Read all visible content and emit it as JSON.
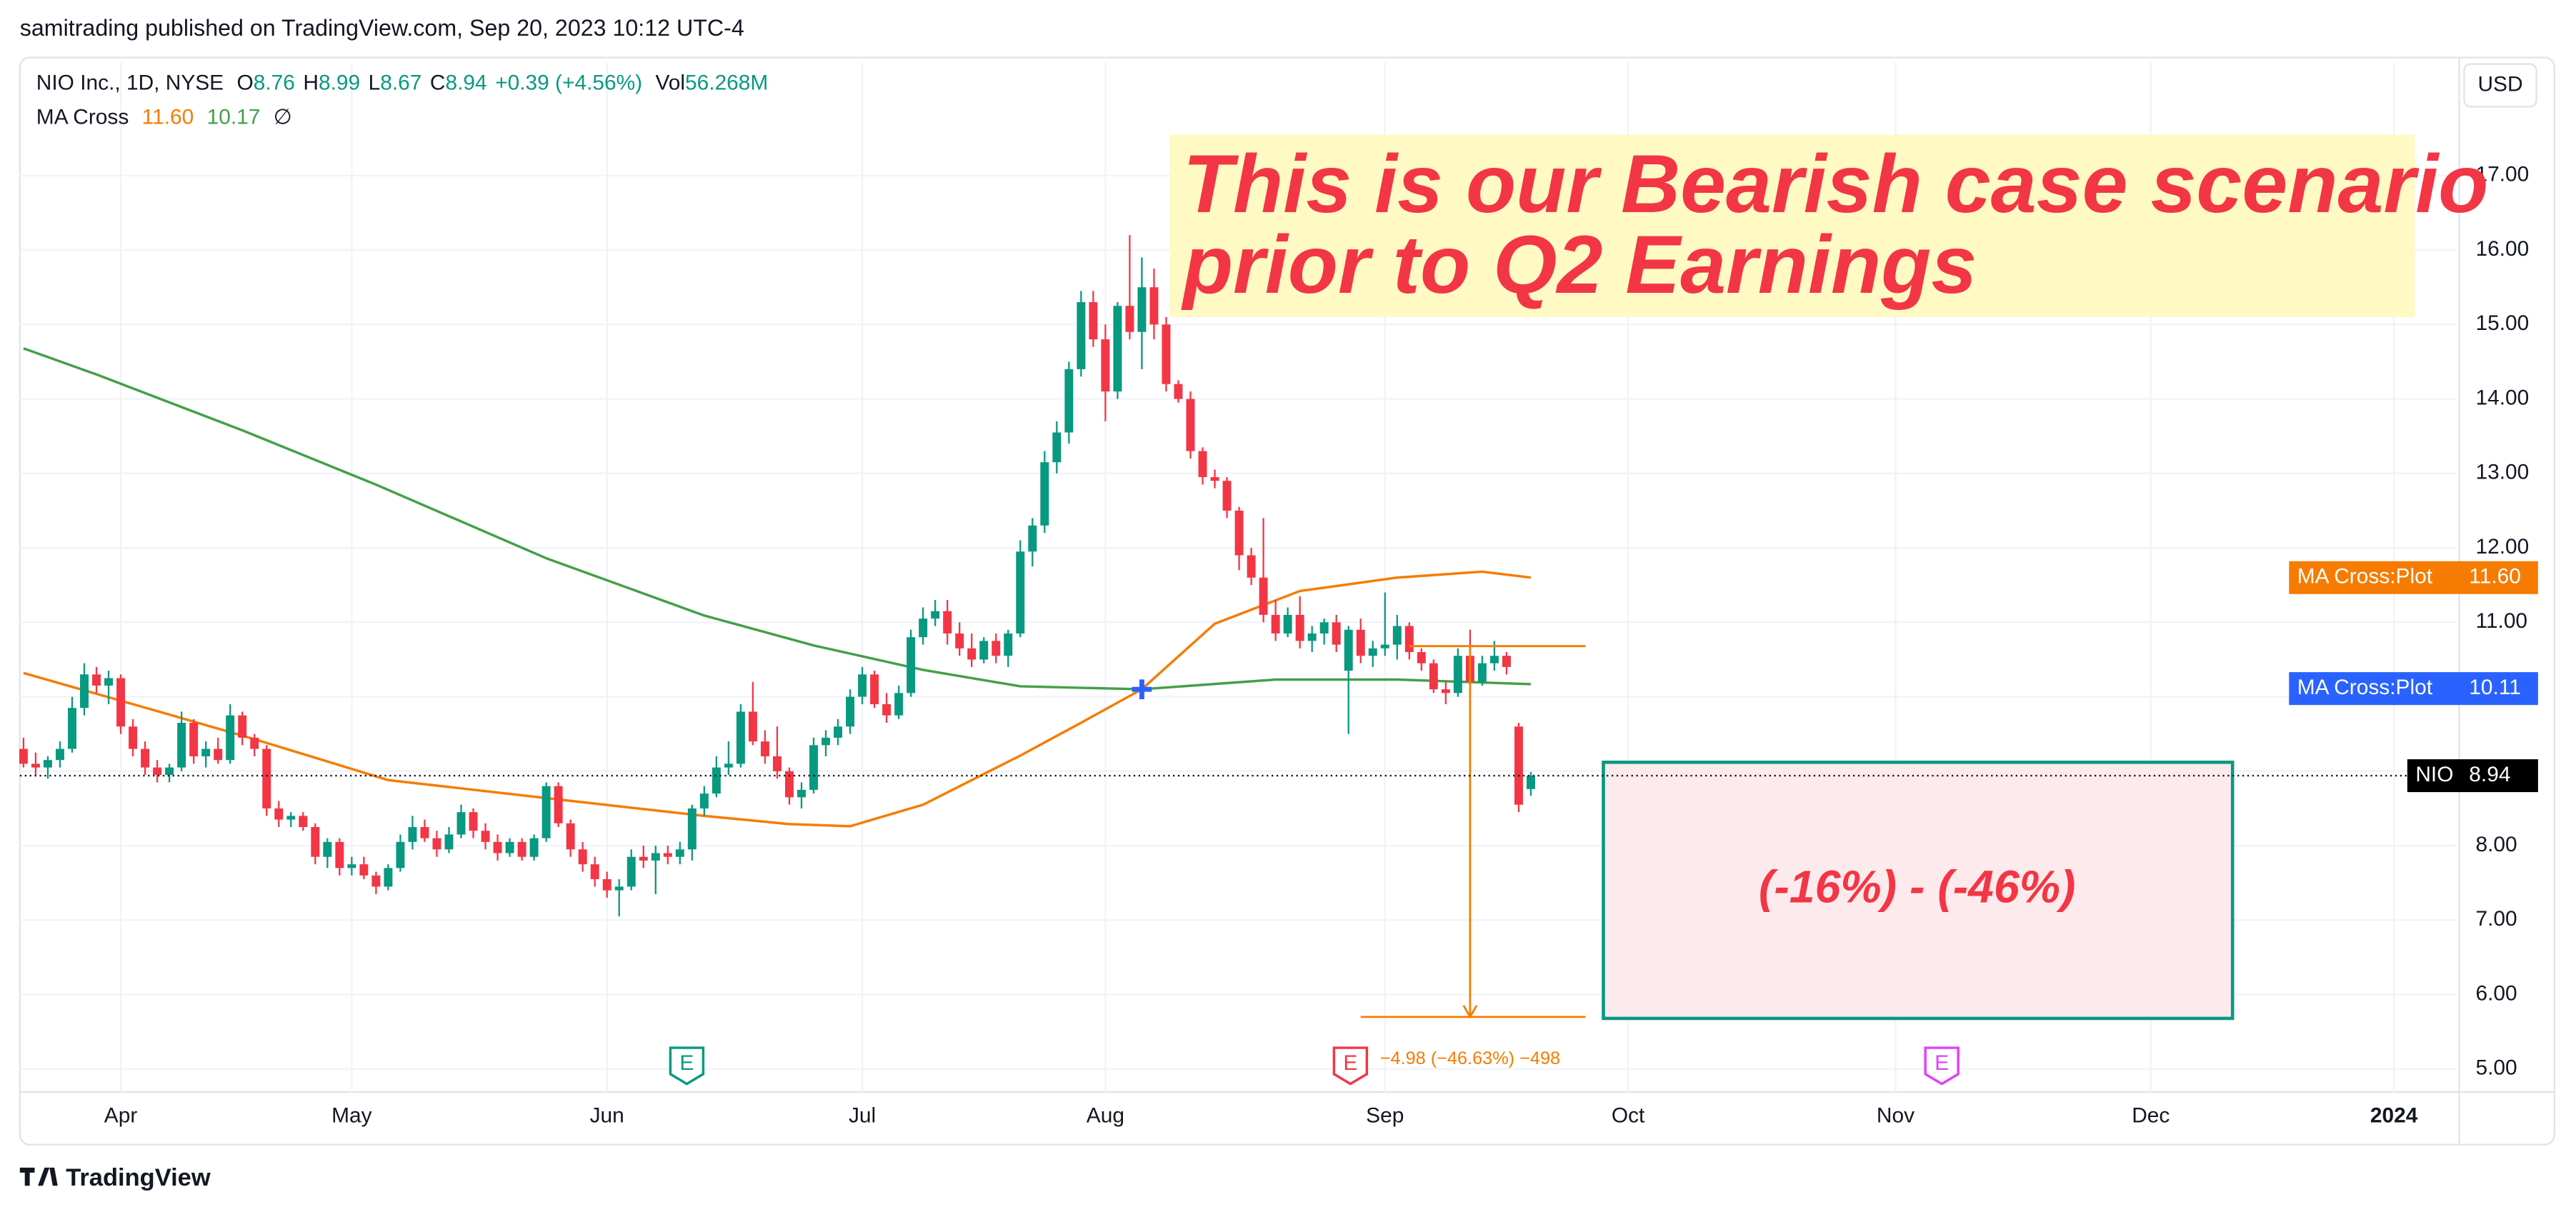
{
  "chart_data": {
    "type": "candlestick",
    "published": "samitrading published on TradingView.com, Sep 20, 2023 10:12 UTC-4",
    "symbol": "NIO Inc., 1D, NYSE",
    "legend_items": [
      {
        "label": "O",
        "value": "8.76"
      },
      {
        "label": "H",
        "value": "8.99"
      },
      {
        "label": "L",
        "value": "8.67"
      },
      {
        "label": "C",
        "value": "8.94"
      }
    ],
    "change": "+0.39 (+4.56%)",
    "volume": {
      "label": "Vol",
      "value": "56.268M"
    },
    "ma_legend": {
      "name": "MA Cross",
      "values": [
        "11.60",
        "10.17"
      ],
      "symbol": "∅"
    },
    "currency": "USD",
    "brand": "TradingView",
    "annotation": {
      "lines": [
        "This is our Bearish case scenario",
        "prior to Q2 Earnings"
      ],
      "color": "#f23645"
    },
    "zone": {
      "top": 9.12,
      "bottom": 5.68,
      "label": "(-16%) - (-46%)",
      "color": "#089981"
    },
    "measure": {
      "start": 10.68,
      "end": 5.7,
      "label": "−4.98 (−46.63%) −498",
      "color": "#f57c00"
    },
    "earnings": [
      {
        "label": "E",
        "color": "#089981"
      },
      {
        "label": "E",
        "color": "#f23645"
      },
      {
        "label": "E",
        "color": "#e040fb"
      }
    ],
    "up_color": "#089981",
    "down_color": "#f23645",
    "open": [
      9.3,
      9.1,
      9.05,
      9.15,
      9.3,
      9.85,
      10.3,
      10.15,
      10.25,
      9.6,
      9.3,
      9.05,
      8.95,
      9.05,
      9.65,
      9.2,
      9.3,
      9.15,
      9.75,
      9.45,
      9.3,
      8.5,
      8.35,
      8.4,
      8.25,
      7.85,
      8.05,
      7.7,
      7.75,
      7.6,
      7.45,
      7.7,
      8.05,
      8.25,
      8.1,
      7.95,
      8.15,
      8.45,
      8.2,
      8.05,
      7.9,
      8.05,
      7.85,
      8.1,
      8.8,
      8.3,
      7.95,
      7.75,
      7.55,
      7.4,
      7.45,
      7.85,
      7.8,
      7.9,
      7.85,
      7.95,
      8.5,
      8.7,
      9.05,
      9.1,
      9.8,
      9.4,
      9.2,
      9.0,
      8.65,
      8.75,
      9.35,
      9.45,
      9.6,
      10.0,
      10.3,
      9.9,
      9.75,
      10.05,
      10.8,
      11.05,
      11.15,
      10.85,
      10.65,
      10.5,
      10.75,
      10.55,
      10.85,
      11.95,
      12.3,
      13.15,
      13.55,
      14.4,
      15.3,
      14.8,
      14.1,
      15.25,
      14.9,
      15.5,
      15.0,
      14.2,
      14.0,
      13.3,
      12.95,
      12.9,
      12.5,
      11.9,
      11.6,
      11.1,
      10.85,
      11.1,
      10.75,
      10.85,
      11.0,
      10.35,
      10.9,
      10.55,
      10.65,
      10.7,
      10.95,
      10.6,
      10.45,
      10.1,
      10.05,
      10.55,
      10.2,
      10.45,
      10.55,
      9.6,
      8.76
    ],
    "high": [
      9.45,
      9.25,
      9.2,
      9.4,
      10.0,
      10.45,
      10.4,
      10.35,
      10.3,
      9.7,
      9.4,
      9.15,
      9.1,
      9.8,
      9.7,
      9.4,
      9.45,
      9.9,
      9.8,
      9.5,
      9.35,
      8.6,
      8.45,
      8.45,
      8.3,
      8.1,
      8.1,
      7.85,
      7.85,
      7.65,
      7.75,
      8.15,
      8.4,
      8.35,
      8.2,
      8.25,
      8.55,
      8.5,
      8.3,
      8.15,
      8.1,
      8.1,
      8.15,
      8.85,
      8.85,
      8.35,
      8.05,
      7.85,
      7.65,
      7.55,
      7.95,
      8.0,
      8.0,
      8.0,
      8.05,
      8.55,
      8.8,
      9.2,
      9.4,
      9.9,
      10.2,
      9.55,
      9.6,
      9.05,
      8.85,
      9.45,
      9.55,
      9.7,
      10.1,
      10.4,
      10.35,
      10.05,
      10.15,
      10.9,
      11.2,
      11.3,
      11.3,
      11.0,
      10.85,
      10.8,
      10.85,
      10.9,
      12.1,
      12.4,
      13.3,
      13.7,
      14.5,
      15.45,
      15.45,
      15.0,
      15.3,
      16.2,
      15.9,
      15.75,
      15.1,
      14.25,
      14.1,
      13.35,
      13.05,
      12.95,
      12.55,
      12.0,
      12.4,
      11.3,
      11.2,
      11.35,
      10.95,
      11.05,
      11.1,
      10.95,
      11.05,
      10.75,
      11.4,
      11.1,
      11.0,
      10.65,
      10.5,
      10.2,
      10.65,
      10.9,
      10.55,
      10.75,
      10.6,
      9.65,
      8.99
    ],
    "low": [
      9.05,
      8.95,
      8.9,
      9.05,
      9.25,
      9.75,
      10.05,
      9.9,
      9.5,
      9.2,
      8.95,
      8.85,
      8.85,
      9.0,
      9.1,
      9.05,
      9.1,
      9.1,
      9.35,
      9.2,
      8.4,
      8.25,
      8.25,
      8.2,
      7.75,
      7.7,
      7.6,
      7.6,
      7.55,
      7.35,
      7.4,
      7.65,
      7.95,
      8.05,
      7.85,
      7.9,
      8.1,
      8.1,
      7.95,
      7.8,
      7.85,
      7.8,
      7.8,
      8.05,
      8.25,
      7.85,
      7.65,
      7.45,
      7.3,
      7.05,
      7.4,
      7.7,
      7.35,
      7.75,
      7.75,
      7.8,
      8.4,
      8.65,
      8.95,
      9.05,
      9.35,
      9.1,
      8.9,
      8.55,
      8.5,
      8.7,
      9.2,
      9.35,
      9.5,
      9.9,
      9.85,
      9.65,
      9.7,
      10.0,
      10.7,
      10.95,
      10.7,
      10.55,
      10.4,
      10.45,
      10.45,
      10.4,
      10.8,
      11.75,
      12.2,
      13.0,
      13.4,
      14.3,
      14.7,
      13.7,
      14.0,
      14.8,
      14.4,
      14.8,
      14.1,
      13.95,
      13.2,
      12.85,
      12.8,
      12.4,
      11.7,
      11.5,
      11.0,
      10.75,
      10.8,
      10.65,
      10.6,
      10.7,
      10.6,
      9.5,
      10.45,
      10.4,
      10.55,
      10.5,
      10.5,
      10.35,
      10.05,
      9.9,
      10.0,
      10.15,
      10.15,
      10.35,
      10.3,
      8.45,
      8.67
    ],
    "close": [
      9.1,
      9.05,
      9.15,
      9.3,
      9.85,
      10.3,
      10.15,
      10.25,
      9.6,
      9.3,
      9.05,
      8.95,
      9.05,
      9.65,
      9.2,
      9.3,
      9.15,
      9.75,
      9.45,
      9.3,
      8.5,
      8.35,
      8.4,
      8.25,
      7.85,
      8.05,
      7.7,
      7.75,
      7.6,
      7.45,
      7.7,
      8.05,
      8.25,
      8.1,
      7.95,
      8.15,
      8.45,
      8.2,
      8.05,
      7.9,
      8.05,
      7.85,
      8.1,
      8.8,
      8.3,
      7.95,
      7.75,
      7.55,
      7.4,
      7.45,
      7.85,
      7.8,
      7.9,
      7.85,
      7.95,
      8.5,
      8.7,
      9.05,
      9.1,
      9.8,
      9.4,
      9.2,
      9.0,
      8.65,
      8.75,
      9.35,
      9.45,
      9.6,
      10.0,
      10.3,
      9.9,
      9.75,
      10.05,
      10.8,
      11.05,
      11.15,
      10.85,
      10.65,
      10.5,
      10.75,
      10.55,
      10.85,
      11.95,
      12.3,
      13.15,
      13.55,
      14.4,
      15.3,
      14.8,
      14.1,
      15.25,
      14.9,
      15.5,
      15.0,
      14.2,
      14.0,
      13.3,
      12.95,
      12.9,
      12.5,
      11.9,
      11.6,
      11.1,
      10.85,
      11.1,
      10.75,
      10.85,
      11.0,
      10.7,
      10.9,
      10.55,
      10.65,
      10.7,
      10.95,
      10.6,
      10.45,
      10.1,
      10.05,
      10.55,
      10.2,
      10.45,
      10.55,
      10.4,
      8.55,
      8.94
    ],
    "ma_lines": [
      {
        "color": "#f57c00",
        "x": [
          0,
          12,
          19,
          30,
          44,
          56,
          63,
          68,
          74,
          82,
          87,
          92,
          98,
          105,
          113,
          120,
          124
        ],
        "values": [
          10.32,
          9.76,
          9.43,
          8.88,
          8.62,
          8.4,
          8.29,
          8.26,
          8.55,
          9.21,
          9.65,
          10.1,
          10.98,
          11.42,
          11.6,
          11.68,
          11.6
        ]
      },
      {
        "color": "#43a047",
        "x": [
          0,
          6,
          18,
          29,
          43,
          56,
          65,
          74,
          82,
          92,
          103,
          113,
          124
        ],
        "values": [
          14.68,
          14.33,
          13.58,
          12.85,
          11.86,
          11.09,
          10.69,
          10.36,
          10.14,
          10.1,
          10.23,
          10.23,
          10.17
        ]
      }
    ],
    "cross": {
      "x": 92,
      "value": 10.1,
      "color": "#2962ff"
    },
    "price_labels": [
      {
        "name": "MA Cross:Plot",
        "value": 11.6,
        "label": "11.60",
        "color": "#f57c00"
      },
      {
        "name": "MA Cross:Plot",
        "value": 10.11,
        "label": "10.11",
        "color": "#2962ff"
      },
      {
        "name": "NIO",
        "value": 8.94,
        "label": "8.94",
        "color": "#000000"
      }
    ],
    "xlim": [
      -0.3,
      200.1
    ],
    "xticks": [
      {
        "value": 8,
        "label": "Apr"
      },
      {
        "value": 27,
        "label": "May"
      },
      {
        "value": 48,
        "label": "Jun"
      },
      {
        "value": 69,
        "label": "Jul"
      },
      {
        "value": 89,
        "label": "Aug"
      },
      {
        "value": 112,
        "label": "Sep"
      },
      {
        "value": 132,
        "label": "Oct"
      },
      {
        "value": 154,
        "label": "Nov"
      },
      {
        "value": 175,
        "label": "Dec"
      },
      {
        "value": 195,
        "label": "2024"
      }
    ],
    "ylim": [
      4.69,
      18.52
    ],
    "yticks": [
      {
        "value": 5,
        "label": "5.00"
      },
      {
        "value": 6,
        "label": "6.00"
      },
      {
        "value": 7,
        "label": "7.00"
      },
      {
        "value": 8,
        "label": "8.00"
      },
      {
        "value": 9,
        "label": "9.00"
      },
      {
        "value": 10,
        "label": "10.00"
      },
      {
        "value": 11,
        "label": "11.00"
      },
      {
        "value": 12,
        "label": "12.00"
      },
      {
        "value": 13,
        "label": "13.00"
      },
      {
        "value": 14,
        "label": "14.00"
      },
      {
        "value": 15,
        "label": "15.00"
      },
      {
        "value": 16,
        "label": "16.00"
      },
      {
        "value": 17,
        "label": "17.00"
      }
    ],
    "grid": true
  }
}
